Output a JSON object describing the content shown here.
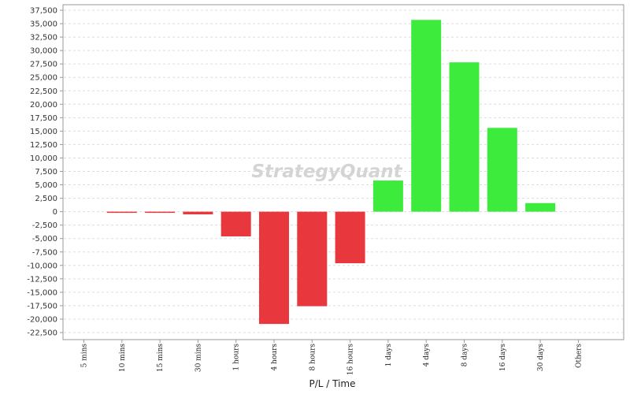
{
  "watermark": "StrategyQuant",
  "chart_data": {
    "type": "bar",
    "xlabel": "P/L / Time",
    "ylabel": "",
    "ylim": [
      -23500,
      37500
    ],
    "yticks": [
      37500,
      35000,
      32500,
      30000,
      27500,
      25000,
      22500,
      20000,
      17500,
      15000,
      12500,
      10000,
      7500,
      5000,
      2500,
      0,
      -2500,
      -5000,
      -7500,
      -10000,
      -12500,
      -15000,
      -17500,
      -20000,
      -22500
    ],
    "ytick_labels": [
      "37,500",
      "35,000",
      "32,500",
      "30,000",
      "27,500",
      "25,000",
      "22,500",
      "20,000",
      "17,500",
      "15,000",
      "12,500",
      "10,000",
      "7,500",
      "5,000",
      "2,500",
      "0",
      "-2,500",
      "-5,000",
      "-7,500",
      "-10,000",
      "-12,500",
      "-15,000",
      "-17,500",
      "-20,000",
      "-22,500"
    ],
    "categories": [
      "5 mins",
      "10 mins",
      "15 mins",
      "30 mins",
      "1 hours",
      "4 hours",
      "8 hours",
      "16 hours",
      "1 days",
      "4 days",
      "8 days",
      "16 days",
      "30 days",
      "Others"
    ],
    "values": [
      0,
      -150,
      -200,
      -500,
      -4600,
      -20900,
      -17600,
      -9600,
      5800,
      35700,
      27800,
      15600,
      1600,
      0
    ],
    "grid": true,
    "colors": {
      "positive": "#3deb3d",
      "negative": "#e8383d",
      "grid": "#dddddd",
      "axis": "#999999"
    }
  }
}
